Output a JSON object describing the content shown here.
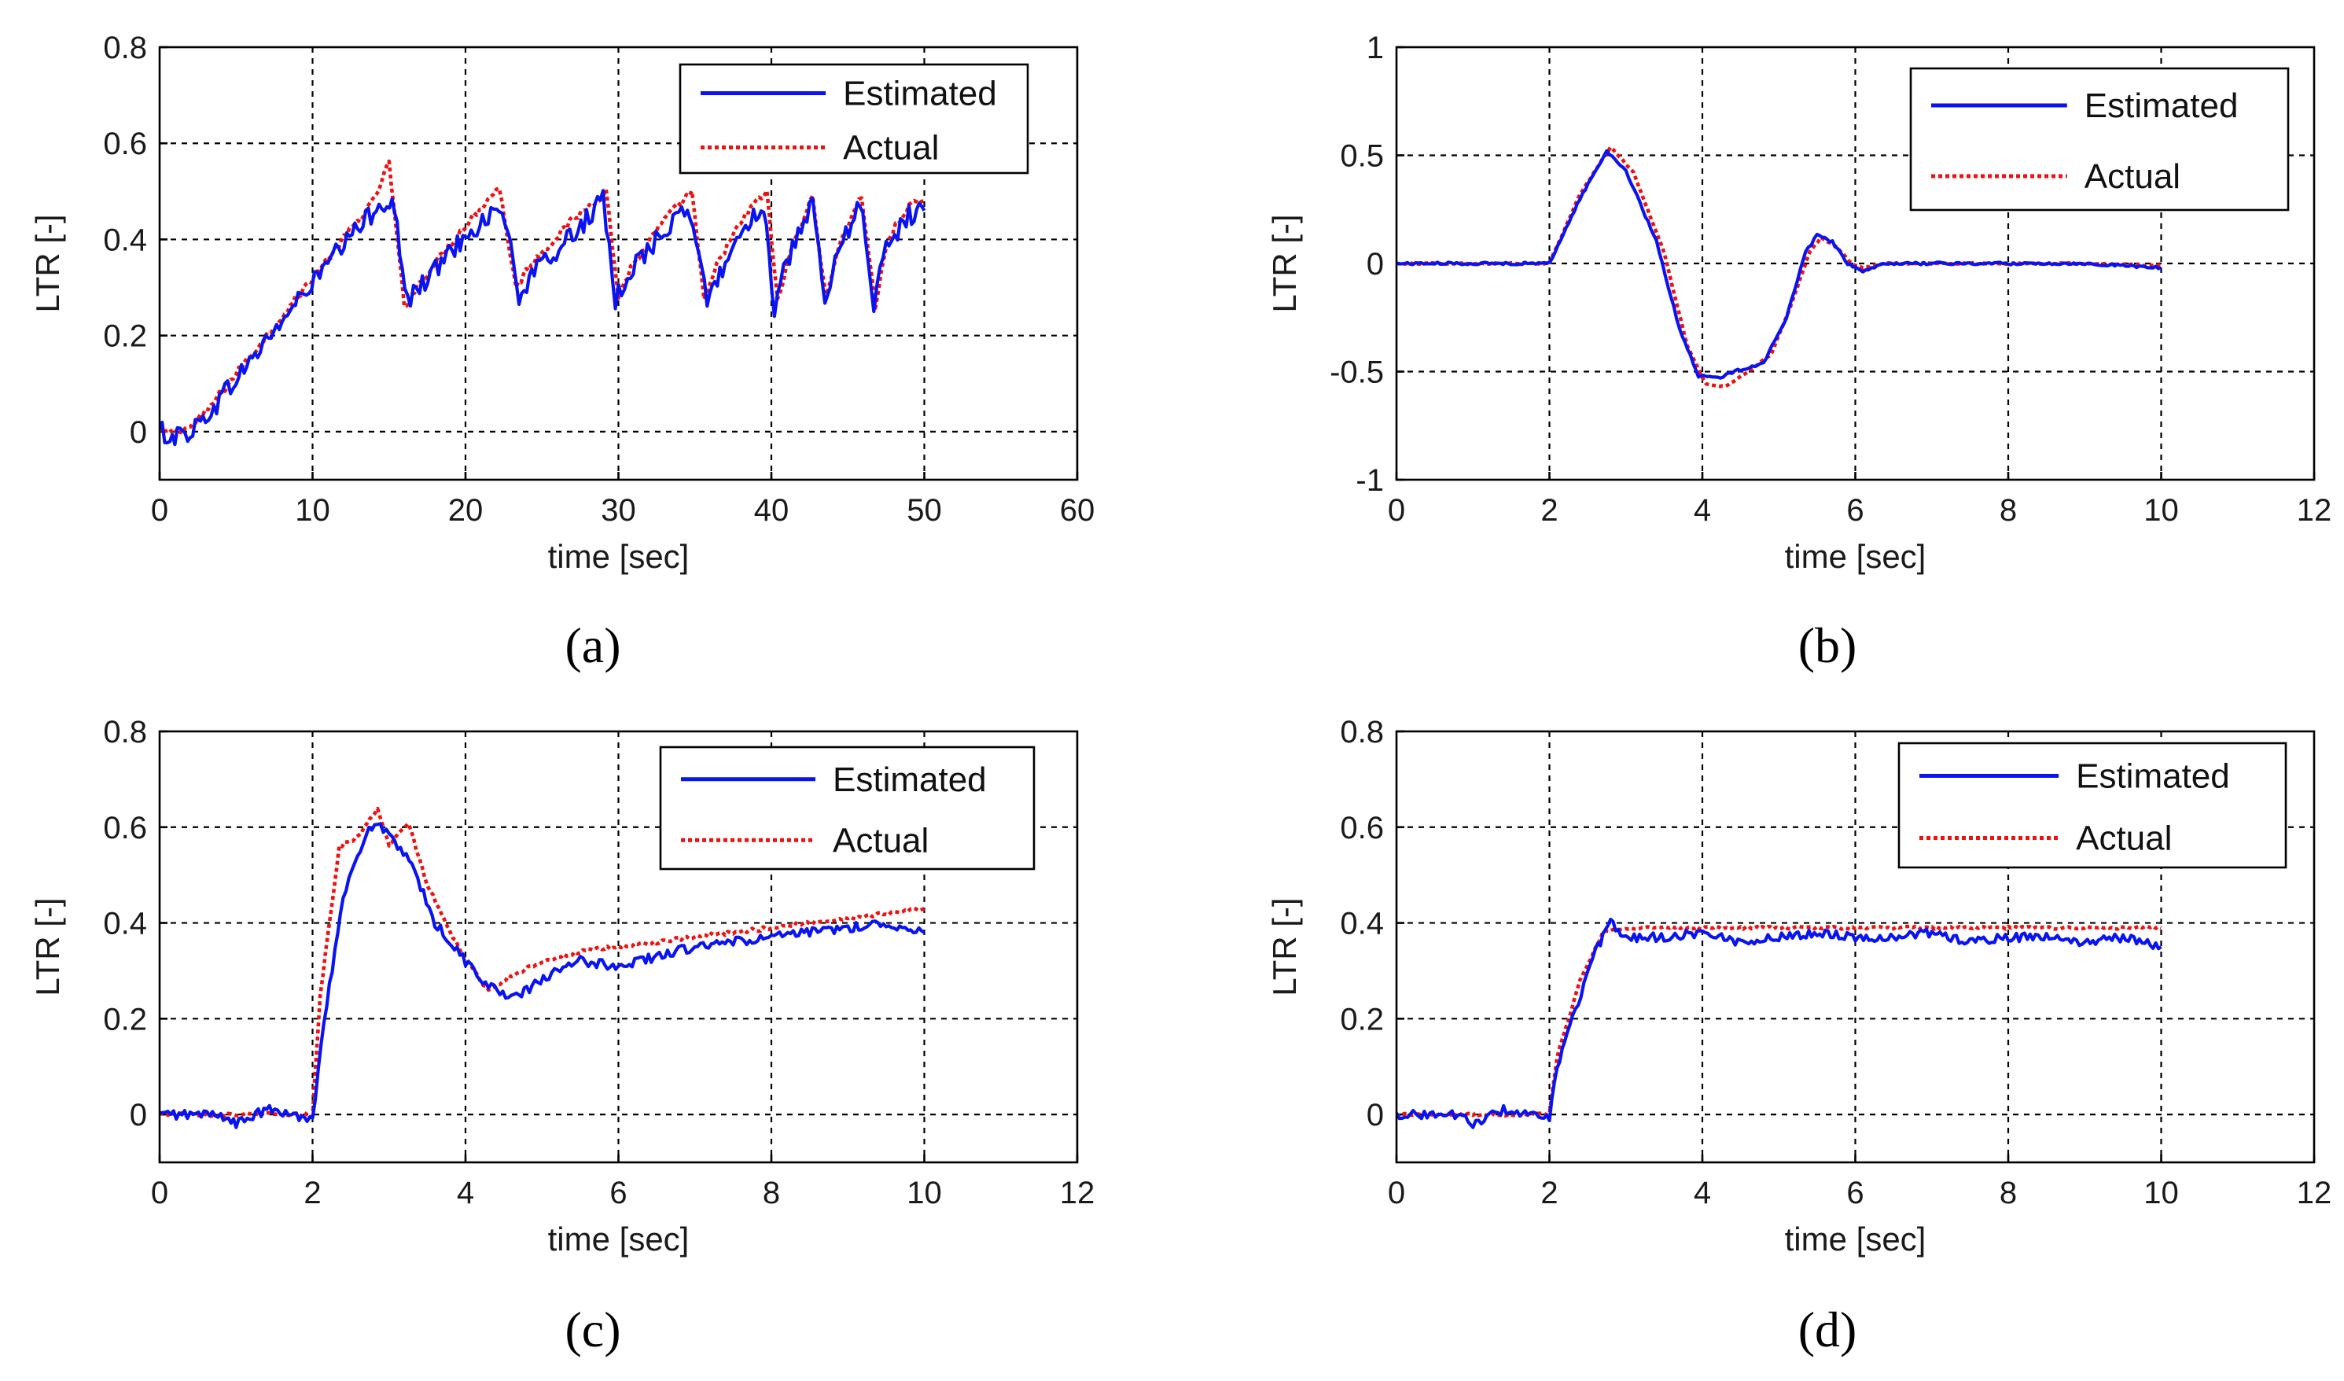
{
  "colors": {
    "estimated": "#0a14f0",
    "actual": "#ee1111"
  },
  "chart_data": [
    {
      "type": "line",
      "panel": "a",
      "caption": "(a)",
      "xlabel": "time [sec]",
      "ylabel": "LTR [-]",
      "xlim": [
        0,
        60
      ],
      "ylim": [
        -0.1,
        0.8
      ],
      "xticks": [
        0,
        10,
        20,
        30,
        40,
        50,
        60
      ],
      "yticks": [
        0,
        0.2,
        0.4,
        0.6,
        0.8
      ],
      "xtick_labels": [
        "0",
        "10",
        "20",
        "30",
        "40",
        "50",
        "60"
      ],
      "ytick_labels": [
        "0",
        "0.2",
        "0.4",
        "0.6",
        "0.8"
      ],
      "grid": true,
      "legend": {
        "position": "top-right",
        "entries": [
          "Estimated",
          "Actual"
        ]
      },
      "noise": {
        "Estimated": 0.022,
        "Actual": 0.008
      },
      "series": [
        {
          "name": "Estimated",
          "style": "solid",
          "x": [
            0,
            1,
            2,
            3,
            5,
            8,
            11,
            14,
            15.2,
            16.2,
            17,
            20,
            22.4,
            23.5,
            24.5,
            27,
            29,
            29.8,
            30.6,
            33,
            34.7,
            35.8,
            36.8,
            38.5,
            39.5,
            40.2,
            41,
            42.7,
            43.5,
            44.5,
            45.8,
            46.7,
            47.5,
            49,
            50
          ],
          "y": [
            0,
            -0.01,
            0.0,
            0.03,
            0.11,
            0.23,
            0.35,
            0.46,
            0.49,
            0.27,
            0.3,
            0.41,
            0.47,
            0.28,
            0.33,
            0.41,
            0.48,
            0.27,
            0.33,
            0.42,
            0.46,
            0.27,
            0.34,
            0.44,
            0.47,
            0.26,
            0.35,
            0.47,
            0.27,
            0.38,
            0.48,
            0.27,
            0.38,
            0.45,
            0.46
          ]
        },
        {
          "name": "Actual",
          "style": "dotted",
          "x": [
            0,
            1,
            2,
            3,
            5,
            8,
            11,
            14,
            15.0,
            16.0,
            17,
            20,
            22.2,
            23.3,
            24.3,
            27,
            29.2,
            30.0,
            30.8,
            33,
            34.8,
            35.6,
            36.6,
            38.5,
            39.7,
            40.4,
            41.2,
            42.7,
            43.6,
            44.4,
            45.9,
            46.8,
            47.6,
            49,
            50
          ],
          "y": [
            0,
            0.0,
            0.01,
            0.04,
            0.12,
            0.24,
            0.36,
            0.48,
            0.56,
            0.26,
            0.31,
            0.43,
            0.51,
            0.3,
            0.35,
            0.44,
            0.5,
            0.28,
            0.34,
            0.44,
            0.5,
            0.27,
            0.36,
            0.46,
            0.5,
            0.27,
            0.37,
            0.49,
            0.27,
            0.39,
            0.49,
            0.26,
            0.4,
            0.47,
            0.48
          ]
        }
      ]
    },
    {
      "type": "line",
      "panel": "b",
      "caption": "(b)",
      "xlabel": "time [sec]",
      "ylabel": "LTR [-]",
      "xlim": [
        0,
        12
      ],
      "ylim": [
        -1,
        1
      ],
      "xticks": [
        0,
        2,
        4,
        6,
        8,
        10,
        12
      ],
      "yticks": [
        -1,
        -0.5,
        0,
        0.5,
        1
      ],
      "xtick_labels": [
        "0",
        "2",
        "4",
        "6",
        "8",
        "10",
        "12"
      ],
      "ytick_labels": [
        "-1",
        "-0.5",
        "0",
        "0.5",
        "1"
      ],
      "grid": true,
      "legend": {
        "position": "top-right",
        "entries": [
          "Estimated",
          "Actual"
        ]
      },
      "noise": {
        "Estimated": 0.006,
        "Actual": 0.003
      },
      "series": [
        {
          "name": "Estimated",
          "style": "solid",
          "x": [
            0,
            1,
            2.0,
            2.4,
            2.75,
            3.0,
            3.4,
            3.7,
            3.95,
            4.2,
            4.5,
            4.8,
            5.1,
            5.35,
            5.5,
            5.7,
            5.9,
            6.1,
            6.4,
            7,
            8,
            9,
            10
          ],
          "y": [
            0,
            0,
            0.0,
            0.3,
            0.52,
            0.43,
            0.1,
            -0.3,
            -0.52,
            -0.53,
            -0.49,
            -0.46,
            -0.25,
            0.05,
            0.13,
            0.1,
            0.0,
            -0.04,
            0.0,
            0.0,
            0.0,
            0.0,
            -0.02
          ]
        },
        {
          "name": "Actual",
          "style": "dotted",
          "x": [
            0,
            1,
            2.0,
            2.4,
            2.8,
            3.1,
            3.5,
            3.8,
            4.05,
            4.3,
            4.6,
            4.9,
            5.15,
            5.4,
            5.55,
            5.75,
            5.95,
            6.1,
            6.4,
            7,
            8,
            9,
            10
          ],
          "y": [
            0,
            0,
            0.0,
            0.32,
            0.54,
            0.42,
            0.05,
            -0.38,
            -0.56,
            -0.57,
            -0.5,
            -0.42,
            -0.2,
            0.05,
            0.12,
            0.08,
            0.0,
            -0.02,
            0.0,
            0.0,
            0.0,
            0.0,
            -0.01
          ]
        }
      ]
    },
    {
      "type": "line",
      "panel": "c",
      "caption": "(c)",
      "xlabel": "time [sec]",
      "ylabel": "LTR [-]",
      "xlim": [
        0,
        12
      ],
      "ylim": [
        -0.1,
        0.8
      ],
      "xticks": [
        0,
        2,
        4,
        6,
        8,
        10,
        12
      ],
      "yticks": [
        0,
        0.2,
        0.4,
        0.6,
        0.8
      ],
      "xtick_labels": [
        "0",
        "2",
        "4",
        "6",
        "8",
        "10",
        "12"
      ],
      "ytick_labels": [
        "0",
        "0.2",
        "0.4",
        "0.6",
        "0.8"
      ],
      "grid": true,
      "legend": {
        "position": "top-right",
        "entries": [
          "Estimated",
          "Actual"
        ]
      },
      "noise": {
        "Estimated": 0.01,
        "Actual": 0.004
      },
      "series": [
        {
          "name": "Estimated",
          "style": "solid",
          "x": [
            0,
            0.8,
            1.0,
            1.4,
            2.0,
            2.15,
            2.4,
            2.7,
            2.85,
            3.0,
            3.3,
            3.6,
            4.0,
            4.3,
            4.6,
            4.8,
            5.2,
            5.5,
            6.0,
            6.5,
            7,
            7.5,
            8,
            8.5,
            9,
            9.5,
            10
          ],
          "y": [
            0,
            0.0,
            -0.02,
            0.01,
            -0.01,
            0.2,
            0.45,
            0.59,
            0.61,
            0.58,
            0.52,
            0.4,
            0.32,
            0.27,
            0.24,
            0.26,
            0.3,
            0.32,
            0.31,
            0.33,
            0.35,
            0.36,
            0.37,
            0.38,
            0.39,
            0.4,
            0.38
          ]
        },
        {
          "name": "Actual",
          "style": "dotted",
          "x": [
            0,
            1.0,
            2.0,
            2.1,
            2.35,
            2.6,
            2.85,
            3.0,
            3.25,
            3.5,
            3.8,
            4.1,
            4.3,
            4.6,
            5.0,
            5.5,
            6.0,
            6.5,
            7,
            7.5,
            8,
            8.5,
            9,
            9.5,
            10
          ],
          "y": [
            0,
            0.0,
            0.0,
            0.25,
            0.56,
            0.58,
            0.64,
            0.56,
            0.61,
            0.48,
            0.38,
            0.3,
            0.26,
            0.29,
            0.32,
            0.34,
            0.35,
            0.36,
            0.37,
            0.38,
            0.39,
            0.4,
            0.41,
            0.42,
            0.43
          ]
        }
      ]
    },
    {
      "type": "line",
      "panel": "d",
      "caption": "(d)",
      "xlabel": "time [sec]",
      "ylabel": "LTR [-]",
      "xlim": [
        0,
        12
      ],
      "ylim": [
        -0.1,
        0.8
      ],
      "xticks": [
        0,
        2,
        4,
        6,
        8,
        10,
        12
      ],
      "yticks": [
        0,
        0.2,
        0.4,
        0.6,
        0.8
      ],
      "xtick_labels": [
        "0",
        "2",
        "4",
        "6",
        "8",
        "10",
        "12"
      ],
      "ytick_labels": [
        "0",
        "0.2",
        "0.4",
        "0.6",
        "0.8"
      ],
      "grid": true,
      "legend": {
        "position": "top-right",
        "entries": [
          "Estimated",
          "Actual"
        ]
      },
      "noise": {
        "Estimated": 0.009,
        "Actual": 0.003
      },
      "series": [
        {
          "name": "Estimated",
          "style": "solid",
          "x": [
            0,
            0.8,
            1.0,
            1.4,
            2.0,
            2.1,
            2.3,
            2.6,
            2.8,
            3.0,
            3.5,
            4,
            4.5,
            5,
            5.5,
            6,
            6.5,
            7,
            7.5,
            8,
            8.5,
            9,
            9.5,
            10
          ],
          "y": [
            0,
            0.0,
            -0.02,
            0.01,
            -0.01,
            0.1,
            0.2,
            0.34,
            0.4,
            0.37,
            0.37,
            0.38,
            0.36,
            0.37,
            0.38,
            0.37,
            0.37,
            0.38,
            0.36,
            0.37,
            0.37,
            0.36,
            0.37,
            0.35
          ]
        },
        {
          "name": "Actual",
          "style": "dotted",
          "x": [
            0,
            1.0,
            2.0,
            2.1,
            2.4,
            2.7,
            3.0,
            4,
            5,
            6,
            7,
            8,
            9,
            10
          ],
          "y": [
            0,
            0.0,
            0.0,
            0.12,
            0.28,
            0.38,
            0.39,
            0.39,
            0.39,
            0.39,
            0.39,
            0.39,
            0.39,
            0.39
          ]
        }
      ]
    }
  ]
}
